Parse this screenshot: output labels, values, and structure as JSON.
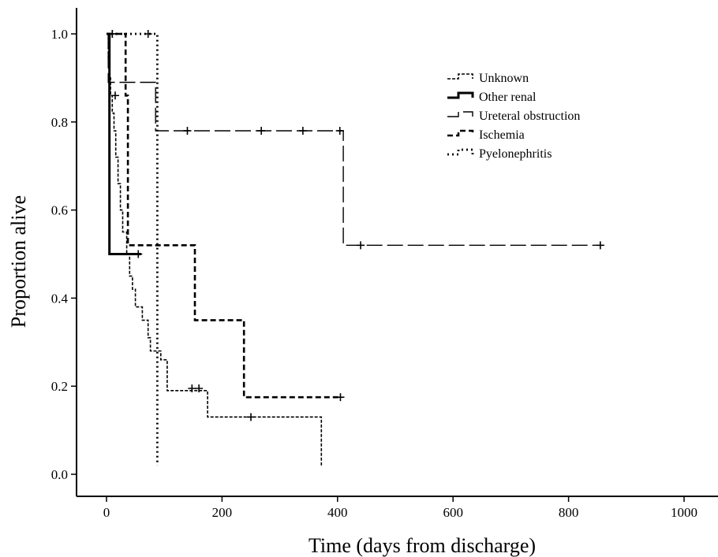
{
  "chart_data": {
    "type": "line",
    "subtype": "kaplan-meier step curves with censor marks",
    "title": "",
    "xlabel": "Time (days from discharge)",
    "ylabel": "Proportion alive",
    "xlim": [
      -50,
      1050
    ],
    "ylim": [
      -0.05,
      1.06
    ],
    "xticks": [
      0,
      200,
      400,
      600,
      800,
      1000
    ],
    "xtick_labels": [
      "0",
      "200",
      "400",
      "600",
      "800",
      "1000"
    ],
    "yticks": [
      0.0,
      0.2,
      0.4,
      0.6,
      0.8,
      1.0
    ],
    "ytick_labels": [
      "0.0",
      "0.2",
      "0.4",
      "0.6",
      "0.8",
      "1.0"
    ],
    "grid": false,
    "legend": {
      "placement": "top-right",
      "entries": [
        "Unknown",
        "Other renal",
        "Ureteral obstruction",
        "Ischemia",
        "Pyelonephritis"
      ]
    },
    "series": [
      {
        "name": "Unknown",
        "dash": "4,2",
        "stroke_width": 1.6,
        "steps": [
          [
            0,
            1.0
          ],
          [
            3,
            0.94
          ],
          [
            5,
            0.9
          ],
          [
            7,
            0.86
          ],
          [
            10,
            0.82
          ],
          [
            13,
            0.78
          ],
          [
            16,
            0.72
          ],
          [
            20,
            0.66
          ],
          [
            24,
            0.6
          ],
          [
            28,
            0.55
          ],
          [
            35,
            0.5
          ],
          [
            40,
            0.45
          ],
          [
            45,
            0.42
          ],
          [
            50,
            0.38
          ],
          [
            62,
            0.35
          ],
          [
            72,
            0.31
          ],
          [
            76,
            0.28
          ],
          [
            85,
            0.28
          ],
          [
            94,
            0.26
          ],
          [
            105,
            0.19
          ],
          [
            175,
            0.13
          ],
          [
            372,
            0.02
          ]
        ],
        "censored": [
          [
            15,
            0.86
          ],
          [
            148,
            0.195
          ],
          [
            160,
            0.195
          ],
          [
            250,
            0.13
          ]
        ]
      },
      {
        "name": "Other renal",
        "dash": "",
        "stroke_width": 3,
        "steps": [
          [
            0,
            1.0
          ],
          [
            5,
            0.5
          ],
          [
            60,
            0.5
          ]
        ],
        "censored": [
          [
            10,
            1.0
          ],
          [
            55,
            0.5
          ]
        ]
      },
      {
        "name": "Ureteral obstruction",
        "dash": "20,6",
        "stroke_width": 1.4,
        "steps": [
          [
            0,
            1.0
          ],
          [
            3,
            0.89
          ],
          [
            85,
            0.78
          ],
          [
            410,
            0.52
          ],
          [
            855,
            0.52
          ]
        ],
        "censored": [
          [
            140,
            0.78
          ],
          [
            268,
            0.78
          ],
          [
            340,
            0.78
          ],
          [
            404,
            0.78
          ],
          [
            440,
            0.52
          ],
          [
            855,
            0.52
          ]
        ]
      },
      {
        "name": "Ischemia",
        "dash": "7,4",
        "stroke_width": 2.6,
        "steps": [
          [
            0,
            1.0
          ],
          [
            33,
            0.86
          ],
          [
            37,
            0.52
          ],
          [
            153,
            0.35
          ],
          [
            238,
            0.175
          ],
          [
            405,
            0.175
          ]
        ],
        "censored": [
          [
            405,
            0.175
          ]
        ]
      },
      {
        "name": "Pyelonephritis",
        "dash": "2,4",
        "stroke_width": 2.8,
        "steps": [
          [
            0,
            1.0
          ],
          [
            88,
            0.02
          ]
        ],
        "censored": [
          [
            10,
            1.0
          ],
          [
            72,
            1.0
          ]
        ]
      }
    ]
  }
}
